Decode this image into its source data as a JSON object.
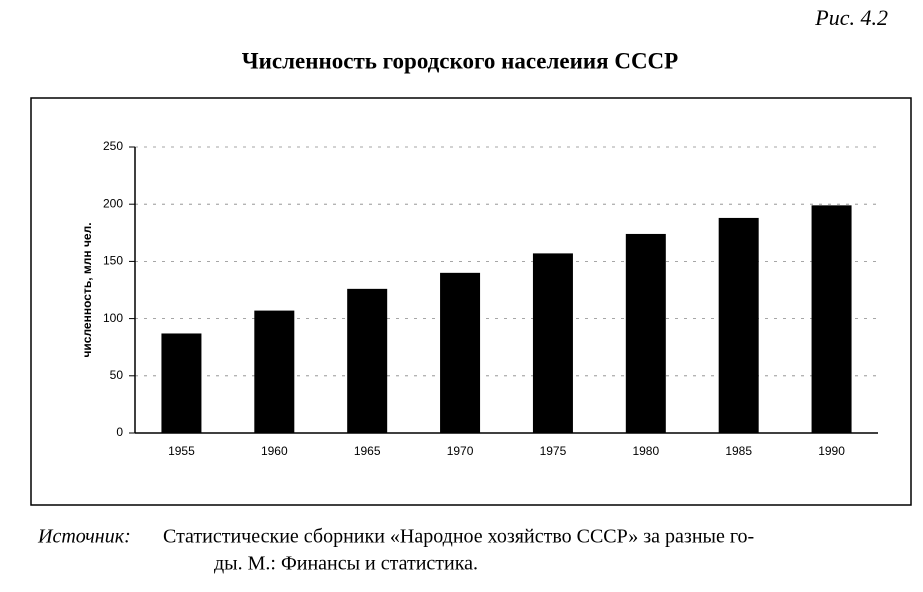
{
  "chart_data": {
    "type": "bar",
    "figure_label": "Рис. 4.2",
    "title": "Численность городского населеиия СССР",
    "y_label": "численность, млн чел.",
    "categories": [
      "1955",
      "1960",
      "1965",
      "1970",
      "1975",
      "1980",
      "1985",
      "1990"
    ],
    "values": [
      87,
      107,
      126,
      140,
      157,
      174,
      188,
      199
    ],
    "color": "#000000",
    "ylim": [
      0,
      250
    ],
    "yticks": [
      0,
      50,
      100,
      150,
      200,
      250
    ],
    "grid": true,
    "source_label": "Источник:",
    "source_lines": [
      "Статистические сборники «Народное хозяйство СССР» за разные го-",
      "ды. М.: Финансы и статистика."
    ]
  }
}
